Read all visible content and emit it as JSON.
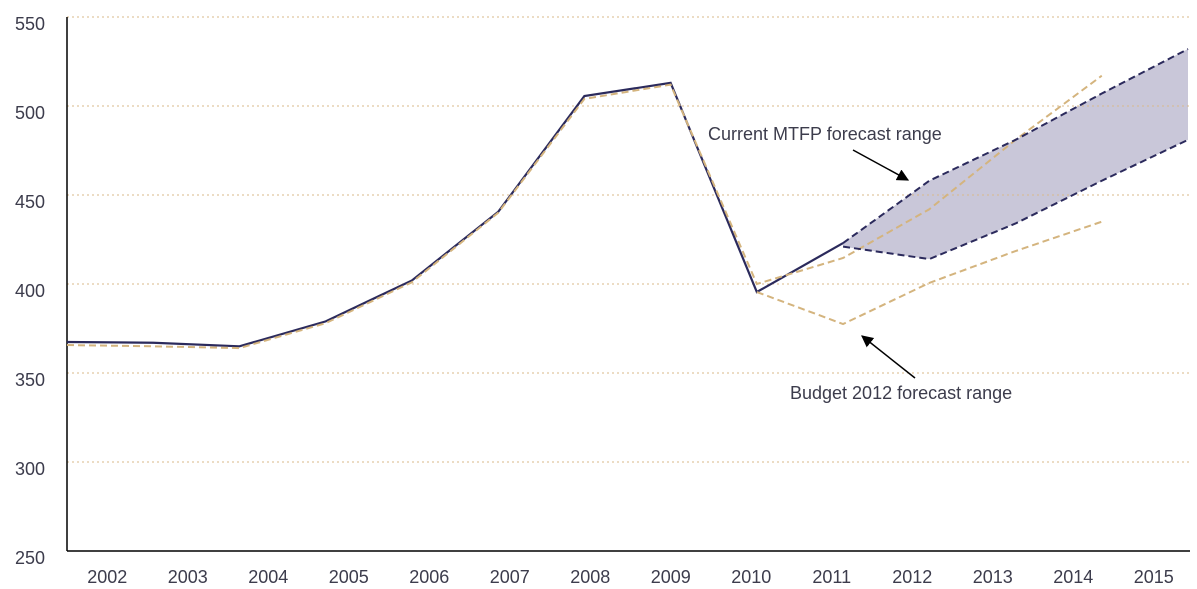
{
  "chart_data": {
    "type": "line",
    "categories": [
      "2002",
      "2003",
      "2004",
      "2005",
      "2006",
      "2007",
      "2008",
      "2009",
      "2010",
      "2011",
      "2012",
      "2013",
      "2014",
      "2015"
    ],
    "series": [
      {
        "color": "#2b2a5c",
        "dash": false,
        "values": [
          367.4,
          367,
          365,
          379,
          402,
          440.5,
          505.6,
          513,
          395.5,
          423,
          null,
          null,
          null,
          null
        ]
      },
      {
        "color": "#d4b47e",
        "dash": true,
        "values": [
          365.7,
          365,
          364,
          378,
          401,
          440,
          504,
          512,
          400,
          414.6,
          442,
          481,
          517,
          null
        ]
      },
      {
        "color": "#d4b47e",
        "dash": true,
        "values": [
          null,
          null,
          null,
          null,
          null,
          null,
          null,
          null,
          395.5,
          377.5,
          400.6,
          418.5,
          435,
          null
        ]
      },
      {
        "color": "#2b2a5c",
        "dash": true,
        "values": [
          null,
          null,
          null,
          null,
          null,
          null,
          null,
          null,
          null,
          423,
          458,
          481,
          507,
          532
        ]
      },
      {
        "color": "#2b2a5c",
        "dash": true,
        "values": [
          null,
          null,
          null,
          null,
          null,
          null,
          null,
          null,
          null,
          421,
          414,
          434,
          458,
          481
        ]
      }
    ],
    "range_fill": {
      "between": [
        3,
        4
      ],
      "color": "#c9c7d9"
    },
    "ylim": [
      250,
      550
    ],
    "yticks": [
      250,
      300,
      350,
      400,
      450,
      500,
      550
    ],
    "grid": true,
    "annotations": [
      "Current MTFP forecast range",
      "Budget 2012 forecast range"
    ]
  }
}
